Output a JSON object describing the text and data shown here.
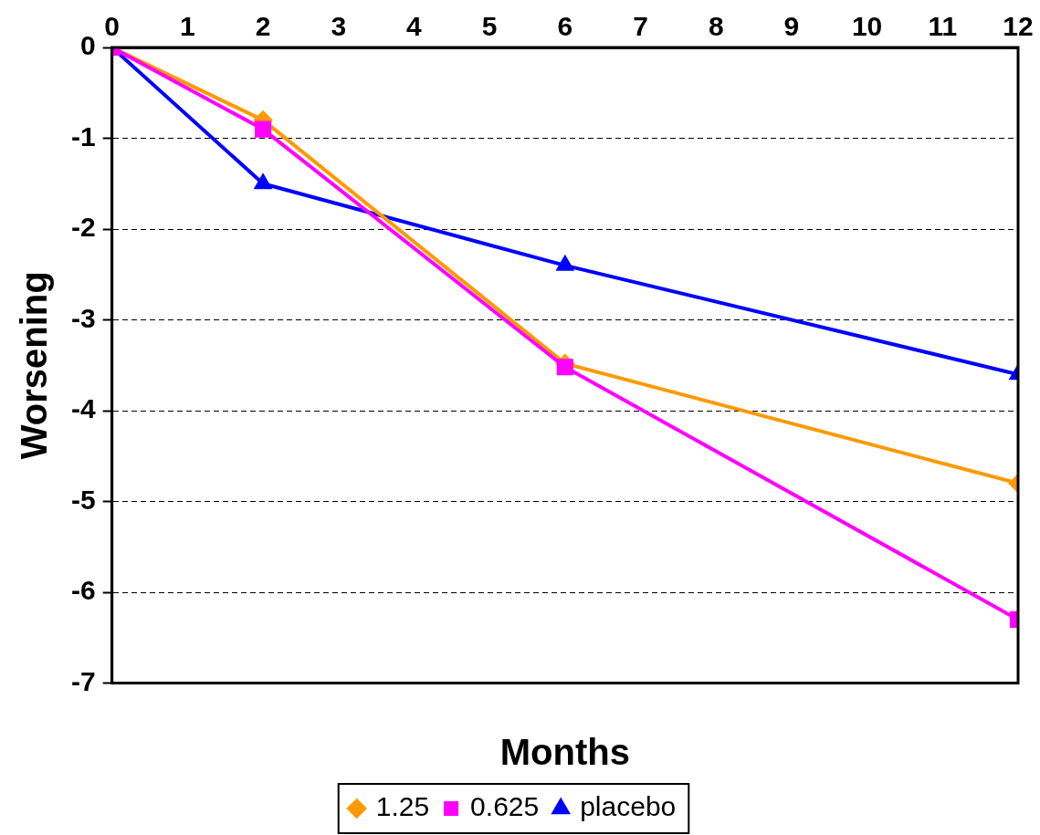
{
  "chart_data": {
    "type": "line",
    "xlabel": "Months",
    "ylabel": "Worsening",
    "xlim": [
      0,
      12
    ],
    "xticks": [
      0,
      1,
      2,
      3,
      4,
      5,
      6,
      7,
      8,
      9,
      10,
      11,
      12
    ],
    "ylim": [
      -7,
      0
    ],
    "yticks": [
      -7,
      -6,
      -5,
      -4,
      -3,
      -2,
      -1,
      0
    ],
    "grid": "y",
    "legend": "bottom",
    "line_style": "solid",
    "series": [
      {
        "name": "1.25",
        "color": "#ff9900",
        "marker": "diamond",
        "x": [
          0,
          2,
          6,
          12
        ],
        "values": [
          0,
          -0.8,
          -3.48,
          -4.8
        ]
      },
      {
        "name": "0.625",
        "color": "#ff00ff",
        "marker": "square",
        "x": [
          0,
          2,
          6,
          12
        ],
        "values": [
          0,
          -0.9,
          -3.52,
          -6.3
        ]
      },
      {
        "name": "placebo",
        "color": "#0000ff",
        "marker": "triangle",
        "x": [
          0,
          2,
          6,
          12
        ],
        "values": [
          0,
          -1.5,
          -2.4,
          -3.6
        ]
      }
    ]
  }
}
